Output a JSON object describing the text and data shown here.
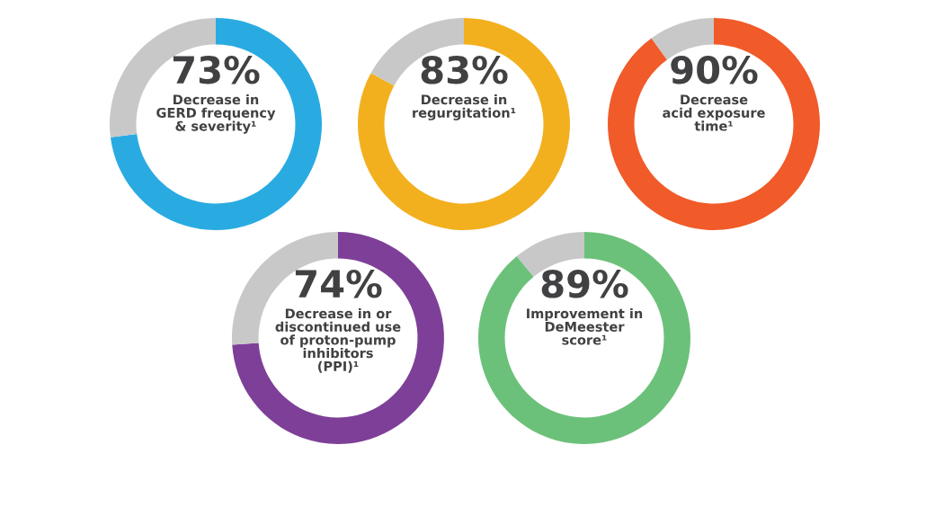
{
  "chart_data": [
    {
      "type": "donut",
      "categories": [
        null,
        null
      ],
      "values": [
        73,
        27
      ],
      "colors": [
        "#29abe2",
        "#c8c8c8"
      ],
      "value_labels": [
        "73%",
        null
      ],
      "annotations": [
        "Decrease in\nGERD frequency\n& severity¹"
      ]
    },
    {
      "type": "donut",
      "categories": [
        null,
        null
      ],
      "values": [
        83,
        17
      ],
      "colors": [
        "#f2b01e",
        "#c8c8c8"
      ],
      "value_labels": [
        "83%",
        null
      ],
      "annotations": [
        "Decrease in\nregurgitation¹"
      ]
    },
    {
      "type": "donut",
      "categories": [
        null,
        null
      ],
      "values": [
        90,
        10
      ],
      "colors": [
        "#f15a29",
        "#c8c8c8"
      ],
      "value_labels": [
        "90%",
        null
      ],
      "annotations": [
        "Decrease\nacid exposure\ntime¹"
      ]
    },
    {
      "type": "donut",
      "categories": [
        null,
        null
      ],
      "values": [
        74,
        26
      ],
      "colors": [
        "#7e3f98",
        "#c8c8c8"
      ],
      "value_labels": [
        "74%",
        null
      ],
      "annotations": [
        "Decrease in or\ndiscontinued use\nof proton-pump\ninhibitors\n(PPI)¹"
      ]
    },
    {
      "type": "donut",
      "categories": [
        null,
        null
      ],
      "values": [
        89,
        11
      ],
      "colors": [
        "#6cc17a",
        "#c8c8c8"
      ],
      "value_labels": [
        "89%",
        null
      ],
      "annotations": [
        "Improvement in\nDeMeester\nscore¹"
      ]
    }
  ]
}
